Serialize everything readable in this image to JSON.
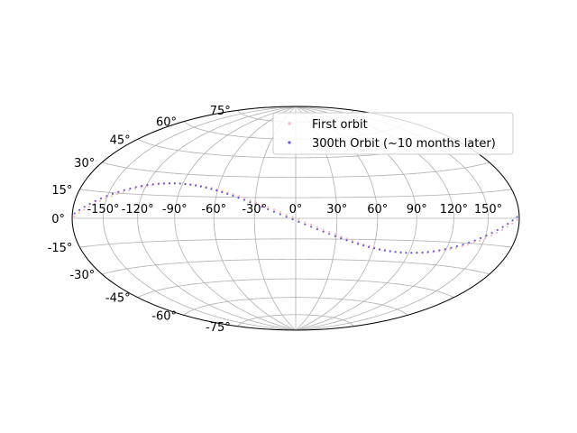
{
  "chart_data": {
    "type": "scatter",
    "projection": "aitoff-hammer",
    "title": "",
    "xlabel": "",
    "ylabel": "",
    "grid": true,
    "legend_placement": "top-right",
    "xlim": [
      -180,
      180
    ],
    "ylim": [
      -90,
      90
    ],
    "x_ticks": [
      -150,
      -120,
      -90,
      -60,
      -30,
      0,
      30,
      60,
      90,
      120,
      150
    ],
    "y_ticks": [
      -75,
      -60,
      -45,
      -30,
      -15,
      0,
      15,
      30,
      45,
      60,
      75
    ],
    "x_tick_labels": [
      "-150°",
      "-120°",
      "-90°",
      "-60°",
      "-30°",
      "0°",
      "30°",
      "60°",
      "90°",
      "120°",
      "150°"
    ],
    "y_tick_labels": [
      "-75°",
      "-60°",
      "-45°",
      "-30°",
      "-15°",
      "0°",
      "15°",
      "30°",
      "45°",
      "60°",
      "75°"
    ],
    "orbit_inclination_deg": 23.4,
    "series": [
      {
        "name": "First orbit",
        "color": "#ffb6c1",
        "phase_offset_deg": 0,
        "points": 80
      },
      {
        "name": "300th Orbit (~10 months later)",
        "color": "#6a5acd",
        "phase_offset_deg": 4,
        "points": 80
      }
    ]
  }
}
